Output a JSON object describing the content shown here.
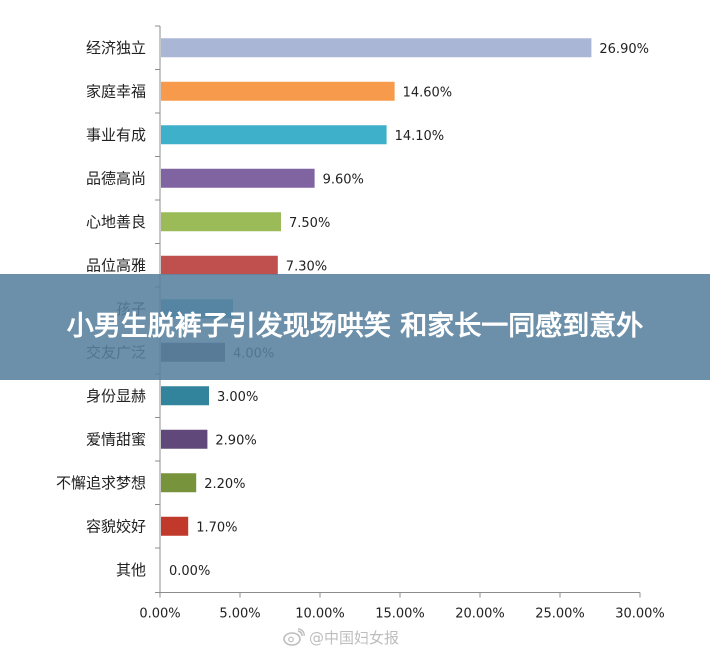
{
  "chart_data": {
    "type": "bar",
    "orientation": "horizontal",
    "categories": [
      "经济独立",
      "家庭幸福",
      "事业有成",
      "品德高尚",
      "心地善良",
      "品位高雅",
      "孩子",
      "交友广泛",
      "身份显赫",
      "爱情甜蜜",
      "不懈追求梦想",
      "容貌姣好",
      "其他"
    ],
    "values": [
      26.9,
      14.6,
      14.1,
      9.6,
      7.5,
      7.3,
      4.5,
      4.0,
      3.0,
      2.9,
      2.2,
      1.7,
      0.0
    ],
    "value_labels": [
      "26.90%",
      "14.60%",
      "14.10%",
      "9.60%",
      "7.50%",
      "7.30%",
      "",
      "4.00%",
      "3.00%",
      "2.90%",
      "2.20%",
      "1.70%",
      "0.00%"
    ],
    "colors": [
      "#a9b6d6",
      "#f79a4b",
      "#3fb0c9",
      "#8064a2",
      "#9bbb59",
      "#c0504d",
      "#4bacc6",
      "#5f6368",
      "#31849b",
      "#60497a",
      "#77933c",
      "#c0392b",
      "#cccccc"
    ],
    "xlim": [
      0,
      30
    ],
    "xticks": [
      "0.00%",
      "5.00%",
      "10.00%",
      "15.00%",
      "20.00%",
      "25.00%",
      "30.00%"
    ],
    "xlabel": "",
    "ylabel": "",
    "grid": false,
    "legend": "none"
  },
  "banner": {
    "title": "小男生脱裤子引发现场哄笑 和家长一同感到意外"
  },
  "watermark": {
    "text": "@中国妇女报",
    "icon": "weibo-icon"
  }
}
